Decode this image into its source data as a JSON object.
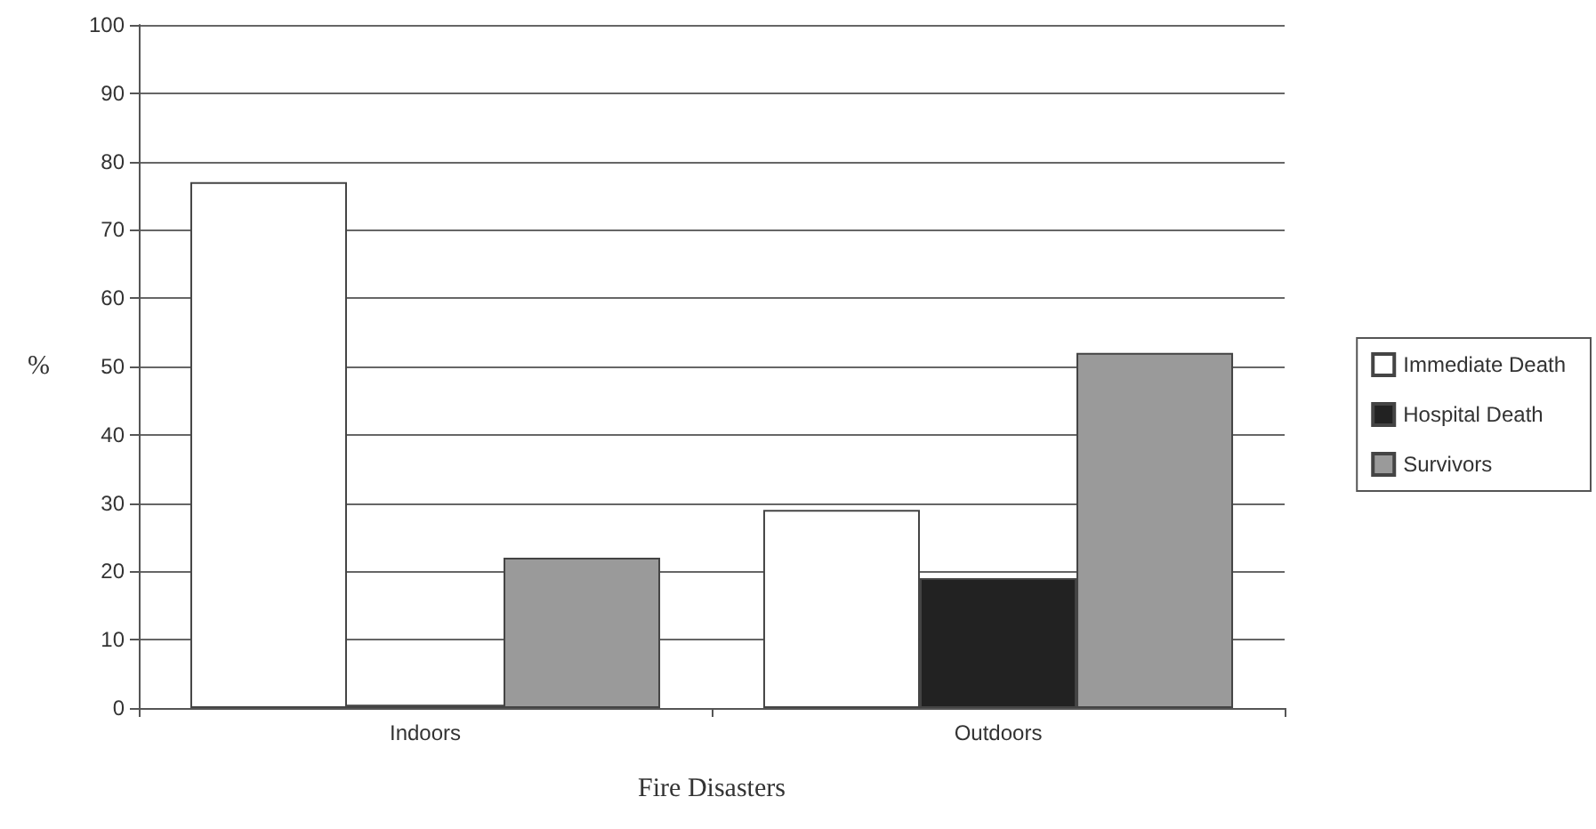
{
  "chart_data": {
    "type": "bar",
    "xlabel": "Fire Disasters",
    "ylabel": "%",
    "categories": [
      "Indoors",
      "Outdoors"
    ],
    "series": [
      {
        "name": "Immediate Death",
        "color": "#ffffff",
        "values": [
          77,
          29
        ]
      },
      {
        "name": "Hospital Death",
        "color": "#222222",
        "values": [
          0.5,
          19
        ]
      },
      {
        "name": "Survivors",
        "color": "#9a9a9a",
        "values": [
          22,
          52
        ]
      }
    ],
    "ylim": [
      0,
      100
    ],
    "yticks": [
      0,
      10,
      20,
      30,
      40,
      50,
      60,
      70,
      80,
      90,
      100
    ],
    "grid": "y",
    "legend": "right"
  }
}
